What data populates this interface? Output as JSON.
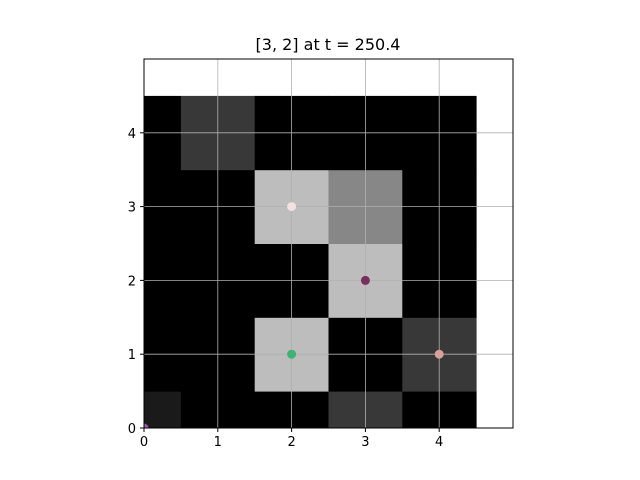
{
  "chart_data": {
    "type": "heatmap",
    "title": "[3, 2] at t = 250.4",
    "xlabel": "",
    "ylabel": "",
    "xlim": [
      0,
      5
    ],
    "ylim": [
      0,
      5
    ],
    "grid": true,
    "x_ticks": [
      0,
      1,
      2,
      3,
      4
    ],
    "y_ticks": [
      0,
      1,
      2,
      3,
      4
    ],
    "colormap": "gray",
    "cell_origin": [
      -0.5,
      -0.5
    ],
    "cell_size": 1,
    "grid_values": [
      [
        0.1,
        0,
        0,
        0.22,
        0
      ],
      [
        0,
        0,
        0.74,
        0,
        0.22
      ],
      [
        0,
        0,
        0,
        0.74,
        0
      ],
      [
        0,
        0,
        0.74,
        0.53,
        0
      ],
      [
        0,
        0.22,
        0,
        0,
        0
      ]
    ],
    "points": [
      {
        "x": 0,
        "y": 0,
        "color": "#9b59b6"
      },
      {
        "x": 2,
        "y": 1,
        "color": "#3cb371"
      },
      {
        "x": 3,
        "y": 2,
        "color": "#7b2d5e"
      },
      {
        "x": 2,
        "y": 3,
        "color": "#f3e0e0"
      },
      {
        "x": 4,
        "y": 1,
        "color": "#d9a09a"
      }
    ]
  }
}
